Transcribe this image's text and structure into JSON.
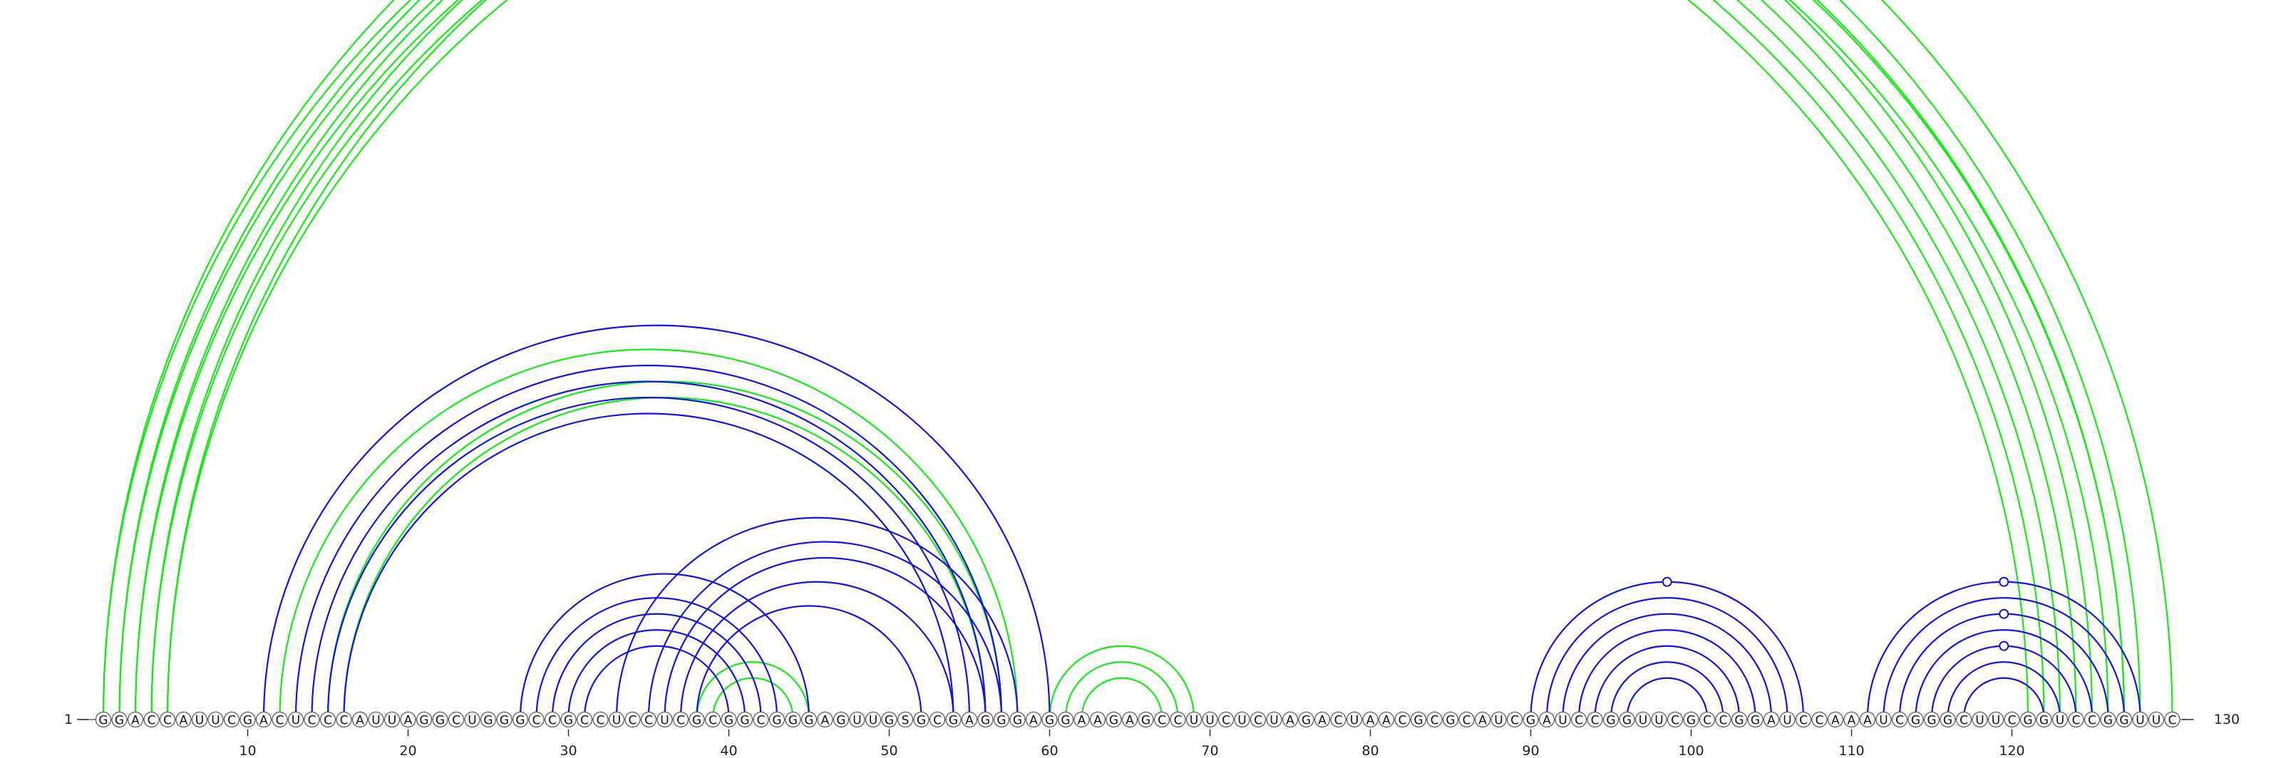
{
  "sequence": "GGACCAUUCGACUCCCAUUAGGCUGGGCCGCCUCCUCGCGGCGGGAGUUGSGCGAGGGAGGAAGAGCCUUCUCUAGACUAACGCGCAUCGAUCCGGUUCGCCGGAUCCAAAUCGGGCUUCGGUCCGGUUC",
  "start_label": "1",
  "end_label": "130",
  "ticks": [
    10,
    20,
    30,
    40,
    50,
    60,
    70,
    80,
    90,
    100,
    110,
    120
  ],
  "colors": {
    "green": "#16ea16",
    "blue": "#1414e0",
    "backbone": "#6a6a6a"
  },
  "arcs": {
    "green": [
      [
        1,
        130
      ],
      [
        2,
        128
      ],
      [
        3,
        127
      ],
      [
        4,
        127
      ],
      [
        5,
        126
      ],
      [
        12,
        58
      ],
      [
        15,
        57
      ],
      [
        16,
        56
      ],
      [
        38,
        45
      ],
      [
        39,
        44
      ],
      [
        60,
        69
      ],
      [
        61,
        68
      ],
      [
        62,
        67
      ],
      [
        1,
        125
      ],
      [
        2,
        124
      ],
      [
        3,
        123
      ],
      [
        4,
        122
      ],
      [
        5,
        121
      ]
    ],
    "blue": [
      [
        11,
        60
      ],
      [
        13,
        57
      ],
      [
        14,
        56
      ],
      [
        15,
        55
      ],
      [
        16,
        54
      ],
      [
        27,
        45
      ],
      [
        28,
        43
      ],
      [
        29,
        42
      ],
      [
        30,
        41
      ],
      [
        31,
        40
      ],
      [
        33,
        58
      ],
      [
        35,
        57
      ],
      [
        36,
        56
      ],
      [
        37,
        54
      ],
      [
        38,
        52
      ],
      [
        90,
        107
      ],
      [
        91,
        106
      ],
      [
        92,
        105
      ],
      [
        93,
        104
      ],
      [
        94,
        103
      ],
      [
        95,
        102
      ],
      [
        96,
        101
      ],
      [
        111,
        128
      ],
      [
        112,
        127
      ],
      [
        113,
        126
      ],
      [
        114,
        125
      ],
      [
        115,
        124
      ],
      [
        116,
        123
      ],
      [
        117,
        122
      ]
    ]
  },
  "circle_marks": [
    {
      "color": "green",
      "pos": 66.5
    },
    {
      "color": "blue",
      "pos": 99
    },
    {
      "color": "blue",
      "pos": 119.5
    },
    {
      "color": "blue",
      "pos": 119.5
    },
    {
      "color": "blue",
      "pos": 119.5
    }
  ]
}
